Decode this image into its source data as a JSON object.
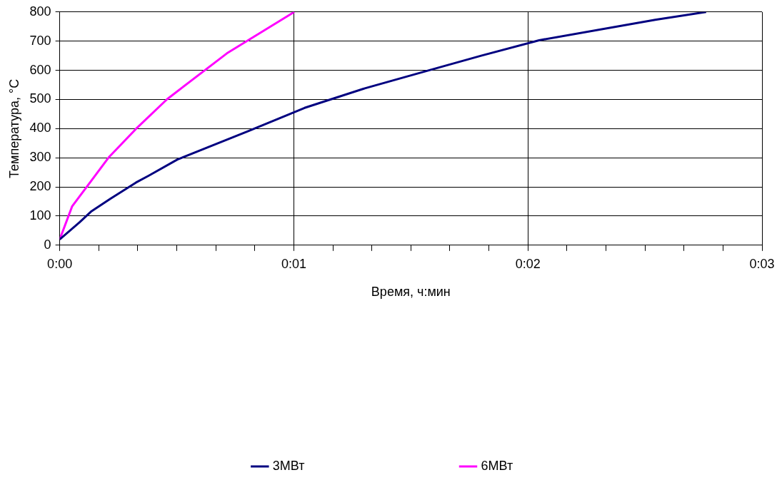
{
  "chart_data": {
    "type": "line",
    "xlabel": "Время, ч:мин",
    "ylabel": "Температура, °C",
    "series": [
      {
        "name": "3МВт",
        "color": "#000080",
        "x": [
          0,
          0.0014,
          0.00222,
          0.00362,
          0.00543,
          0.00632,
          0.00838,
          0.0105,
          0.01345,
          0.01743,
          0.02172,
          0.02637,
          0.03,
          0.03413,
          0.0424,
          0.04602
        ],
        "values": [
          20,
          78,
          115,
          160,
          215,
          238,
          294,
          335,
          392,
          471,
          538,
          601,
          650,
          703,
          773,
          800
        ]
      },
      {
        "name": "6МВт",
        "color": "#ff00ff",
        "x": [
          0,
          0.00088,
          0.00352,
          0.00543,
          0.00765,
          0.0119,
          0.0167
        ],
        "values": [
          20,
          133,
          303,
          399,
          501,
          658,
          800
        ]
      }
    ],
    "xlim": [
      0,
      0.05
    ],
    "xticks": [
      {
        "value": 0,
        "label": "0:00"
      },
      {
        "value": 0.002778,
        "label": null
      },
      {
        "value": 0.005556,
        "label": null
      },
      {
        "value": 0.008333,
        "label": null
      },
      {
        "value": 0.011111,
        "label": null
      },
      {
        "value": 0.013889,
        "label": null
      },
      {
        "value": 0.016667,
        "label": "0:01"
      },
      {
        "value": 0.019444,
        "label": null
      },
      {
        "value": 0.022222,
        "label": null
      },
      {
        "value": 0.025,
        "label": null
      },
      {
        "value": 0.027778,
        "label": null
      },
      {
        "value": 0.030556,
        "label": null
      },
      {
        "value": 0.033333,
        "label": "0:02"
      },
      {
        "value": 0.036111,
        "label": null
      },
      {
        "value": 0.038889,
        "label": null
      },
      {
        "value": 0.041667,
        "label": null
      },
      {
        "value": 0.044444,
        "label": null
      },
      {
        "value": 0.047222,
        "label": null
      },
      {
        "value": 0.05,
        "label": "0:03"
      }
    ],
    "ylim": [
      0,
      800
    ],
    "yticks": [
      0,
      100,
      200,
      300,
      400,
      500,
      600,
      700,
      800
    ],
    "grid": true,
    "legend": "bottom",
    "marker": "none",
    "line_style": "solid"
  }
}
